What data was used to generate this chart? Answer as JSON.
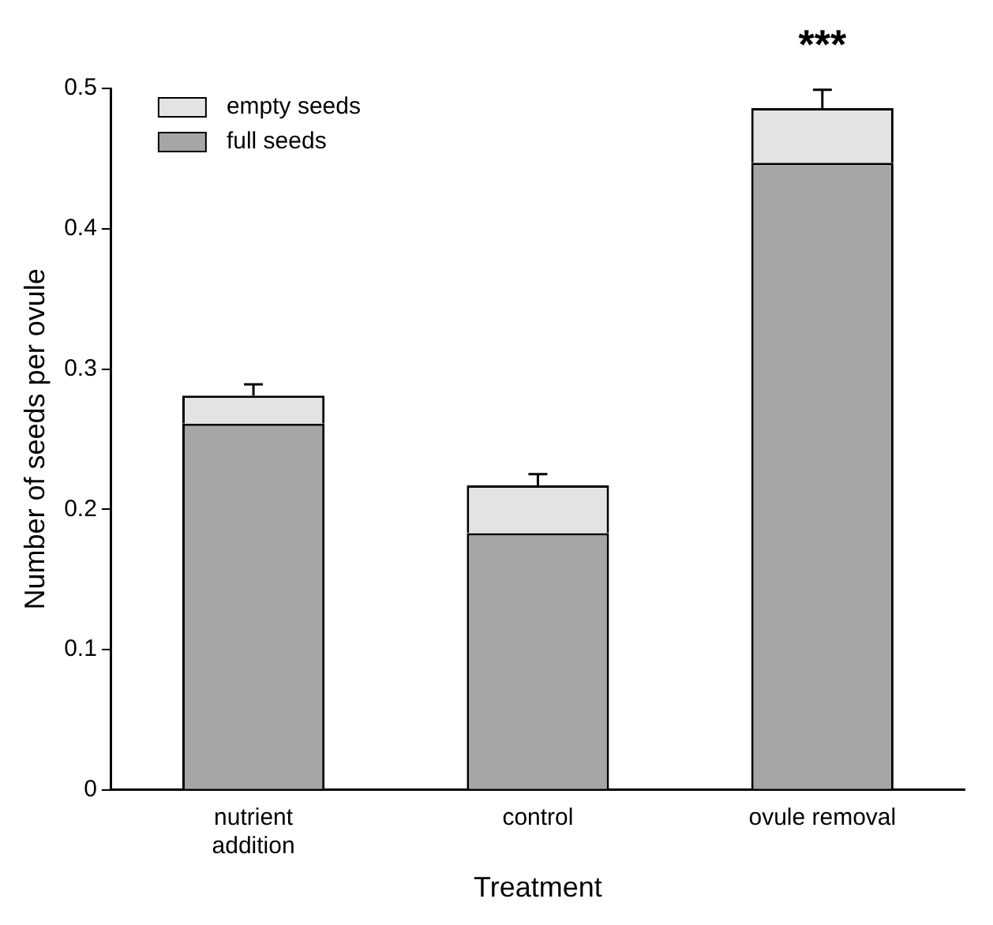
{
  "chart_data": {
    "type": "bar",
    "stacked": true,
    "xlabel": "Treatment",
    "ylabel": "Number of seeds per ovule",
    "categories": [
      "nutrient\naddition",
      "control",
      "ovule removal"
    ],
    "series": [
      {
        "name": "full seeds",
        "color": "#a6a6a6",
        "values": [
          0.261,
          0.183,
          0.447
        ]
      },
      {
        "name": "empty seeds",
        "color": "#e3e3e3",
        "values": [
          0.02,
          0.034,
          0.039
        ],
        "errors": [
          0.008,
          0.008,
          0.013
        ]
      }
    ],
    "ylim": [
      0,
      0.5
    ],
    "yticks": [
      0,
      0.1,
      0.2,
      0.3,
      0.4,
      0.5
    ],
    "grid": false,
    "legend": "top left",
    "annotations": [
      {
        "text": "***",
        "x": "ovule removal",
        "y": 0.499
      }
    ]
  }
}
